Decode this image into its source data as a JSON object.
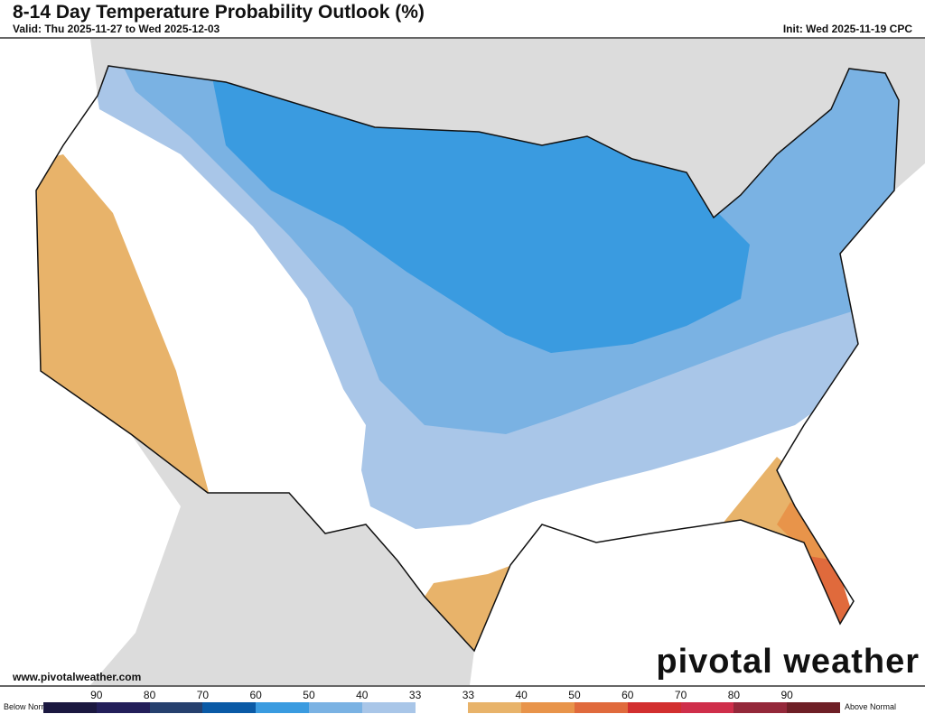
{
  "header": {
    "title": "8-14 Day Temperature Probability Outlook (%)",
    "valid": "Valid: Thu 2025-11-27 to Wed 2025-12-03",
    "init": "Init: Wed 2025-11-19 CPC"
  },
  "footer": {
    "site": "www.pivotalweather.com",
    "logo": "pivotal weather"
  },
  "legend": {
    "left_label": "Below Normal",
    "right_label": "Above Normal",
    "ticks": [
      "90",
      "80",
      "70",
      "60",
      "50",
      "40",
      "33",
      "33",
      "40",
      "50",
      "60",
      "70",
      "80",
      "90"
    ],
    "colors": [
      "#1b1840",
      "#231f5a",
      "#26406e",
      "#0a5aa6",
      "#3a9be0",
      "#7ab2e3",
      "#a9c6e8",
      "#ffffff",
      "#e8b36a",
      "#e8944a",
      "#e06a3c",
      "#d22f2f",
      "#cf2e4a",
      "#94283a",
      "#6e1f26"
    ]
  },
  "map": {
    "colors": {
      "land_other": "#dcdcdc",
      "water": "#ffffff",
      "below_33_40": "#a9c6e8",
      "below_40_50": "#7ab2e3",
      "below_50_60": "#3a9be0",
      "above_33_40": "#e8b36a",
      "above_40_50": "#e8944a",
      "above_50_60": "#e06a3c"
    }
  }
}
